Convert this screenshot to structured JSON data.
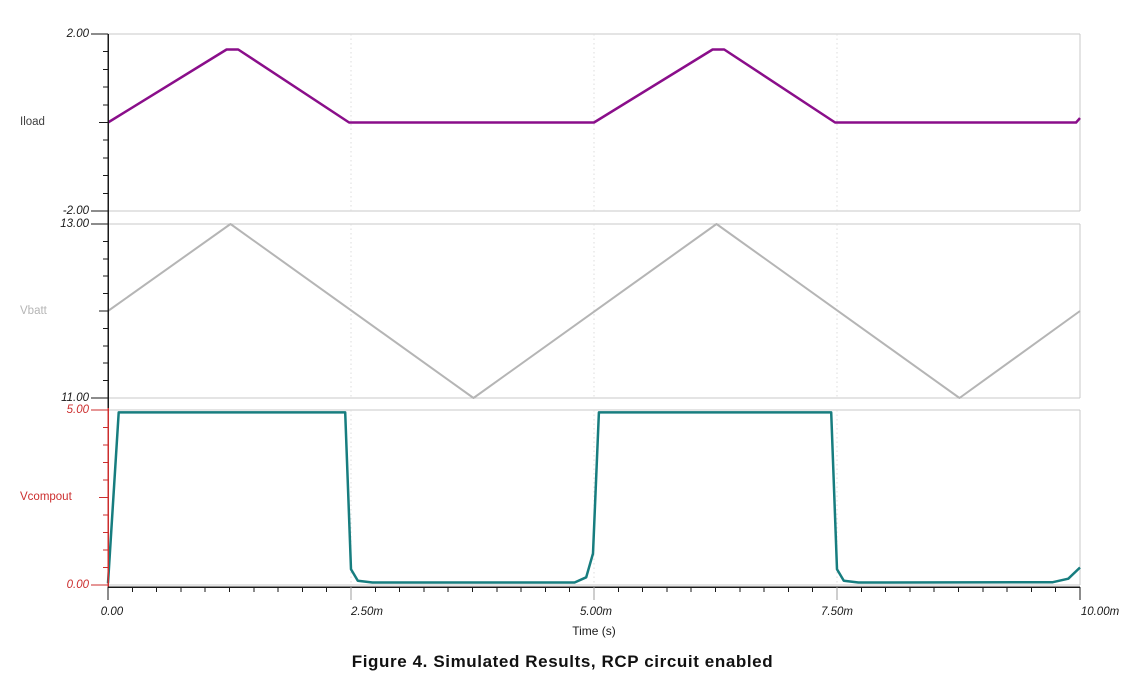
{
  "figure": {
    "caption": "Figure 4. Simulated Results, RCP circuit enabled"
  },
  "x_axis": {
    "label": "Time (s)",
    "range_ms": [
      0,
      10
    ],
    "minor_step_ms": 0.25,
    "ticks": [
      {
        "t": 0,
        "label": "0.00"
      },
      {
        "t": 2.5,
        "label": "2.50m"
      },
      {
        "t": 5,
        "label": "5.00m"
      },
      {
        "t": 7.5,
        "label": "7.50m"
      },
      {
        "t": 10,
        "label": "10.00m"
      }
    ]
  },
  "chart_data": [
    {
      "type": "line",
      "name": "Iload",
      "ylim": [
        -2,
        2
      ],
      "ytick_labels": {
        "top": "2.00",
        "bottom": "-2.00"
      },
      "axis_color": "#1a1a1a",
      "label_color": "#3f3f3f",
      "trace_color": "#8a0e8a",
      "points": [
        [
          0,
          0
        ],
        [
          1.22,
          1.65
        ],
        [
          1.34,
          1.65
        ],
        [
          2.48,
          0
        ],
        [
          5.0,
          0
        ],
        [
          6.22,
          1.65
        ],
        [
          6.34,
          1.65
        ],
        [
          7.48,
          0
        ],
        [
          9.96,
          0
        ],
        [
          10,
          0.1
        ]
      ]
    },
    {
      "type": "line",
      "name": "Vbatt",
      "ylim": [
        11,
        13
      ],
      "ytick_labels": {
        "top": "13.00",
        "bottom": "11.00"
      },
      "axis_color": "#1a1a1a",
      "label_color": "#b5b5b5",
      "trace_color": "#b5b5b5",
      "points": [
        [
          0,
          12
        ],
        [
          1.26,
          13
        ],
        [
          3.76,
          11
        ],
        [
          6.26,
          13
        ],
        [
          8.76,
          11
        ],
        [
          10,
          12
        ]
      ]
    },
    {
      "type": "line",
      "name": "Vcompout",
      "ylim": [
        0,
        5
      ],
      "ytick_labels": {
        "top": "5.00",
        "bottom": "0.00"
      },
      "axis_color": "#cc2e2e",
      "label_color": "#cc2e2e",
      "trace_color": "#177d7f",
      "points": [
        [
          0,
          0.05
        ],
        [
          0.11,
          4.93
        ],
        [
          2.44,
          4.93
        ],
        [
          2.5,
          0.45
        ],
        [
          2.57,
          0.12
        ],
        [
          2.72,
          0.07
        ],
        [
          4.8,
          0.07
        ],
        [
          4.92,
          0.22
        ],
        [
          4.99,
          0.9
        ],
        [
          5.05,
          4.93
        ],
        [
          7.44,
          4.93
        ],
        [
          7.5,
          0.45
        ],
        [
          7.57,
          0.12
        ],
        [
          7.72,
          0.07
        ],
        [
          9.72,
          0.08
        ],
        [
          9.88,
          0.18
        ],
        [
          10,
          0.5
        ]
      ]
    }
  ],
  "colors": {
    "background": "#ffffff",
    "panel_border": "#c9c9c9",
    "gridline": "#dddddd",
    "x_axis": "#1a1a1a",
    "mid_major_tick": "#9c9c9c",
    "tick_text": "#1a1a1a"
  }
}
